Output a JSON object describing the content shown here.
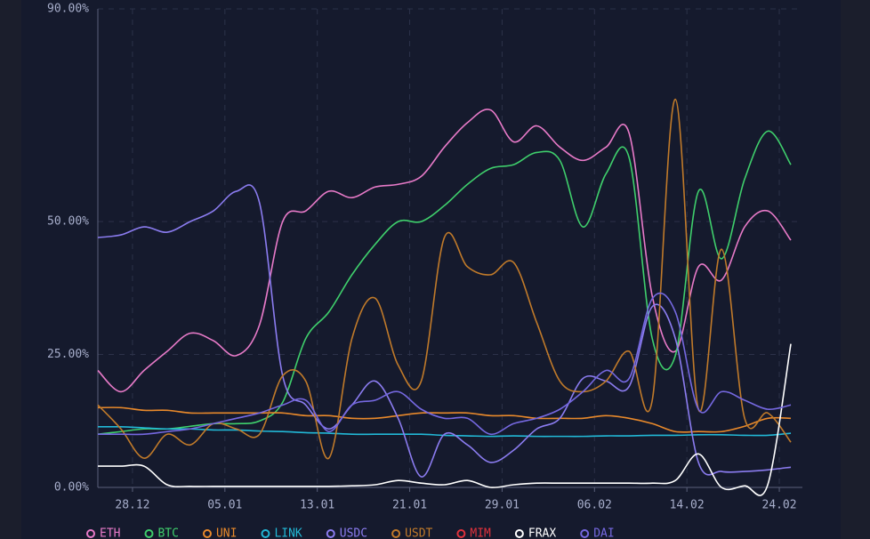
{
  "chart_data": {
    "type": "line",
    "x": [
      0,
      2,
      4,
      6,
      8,
      10,
      12,
      14,
      16,
      18,
      20,
      22,
      24,
      26,
      28,
      30,
      32,
      34,
      36,
      38,
      40,
      42,
      44,
      46,
      48,
      50,
      52,
      54,
      56,
      58,
      60
    ],
    "xlim": [
      0,
      61
    ],
    "xticks": [
      {
        "value": 3,
        "label": "28.12"
      },
      {
        "value": 11,
        "label": "05.01"
      },
      {
        "value": 19,
        "label": "13.01"
      },
      {
        "value": 27,
        "label": "21.01"
      },
      {
        "value": 35,
        "label": "29.01"
      },
      {
        "value": 43,
        "label": "06.02"
      },
      {
        "value": 51,
        "label": "14.02"
      },
      {
        "value": 59,
        "label": "24.02"
      }
    ],
    "ylim": [
      0,
      90
    ],
    "yticks": [
      {
        "value": 0,
        "label": "0.00%"
      },
      {
        "value": 25,
        "label": "25.00%"
      },
      {
        "value": 50,
        "label": "50.00%"
      },
      {
        "value": 90,
        "label": "90.00%"
      }
    ],
    "grid": true,
    "legend": "bottom",
    "series": [
      {
        "name": "ETH",
        "color": "#e77ac8",
        "values": [
          22,
          18,
          22,
          25.6,
          29,
          27.6,
          24.8,
          30.6,
          50,
          52,
          55.7,
          54.5,
          56.5,
          57,
          58.5,
          64,
          68.6,
          71,
          65,
          68,
          64,
          61.5,
          64,
          66.6,
          36,
          25.6,
          41.5,
          39,
          49,
          52,
          46.5
        ]
      },
      {
        "name": "BTC",
        "color": "#3fcf6c",
        "values": [
          10,
          10.5,
          11,
          11,
          11.5,
          12,
          12,
          12.5,
          16,
          28,
          33,
          40,
          45.7,
          50,
          50,
          53,
          57,
          60,
          60.7,
          63,
          61.5,
          49,
          59,
          62,
          28,
          24.8,
          55.7,
          43,
          58,
          67,
          60.7
        ]
      },
      {
        "name": "UNI",
        "color": "#e8892b",
        "values": [
          15,
          15,
          14.5,
          14.5,
          14,
          14,
          14,
          14,
          14,
          13.5,
          13.5,
          13,
          13,
          13.5,
          14,
          14,
          14,
          13.5,
          13.5,
          13,
          13,
          13,
          13.5,
          13,
          12,
          10.5,
          10.5,
          10.5,
          11.5,
          13,
          13
        ]
      },
      {
        "name": "LINK",
        "color": "#22b8d6",
        "values": [
          11.4,
          11.4,
          11.2,
          11,
          11,
          10.8,
          10.8,
          10.6,
          10.5,
          10.3,
          10.2,
          10,
          10,
          10,
          10,
          9.8,
          9.7,
          9.6,
          9.7,
          9.6,
          9.6,
          9.6,
          9.7,
          9.7,
          9.8,
          9.8,
          9.9,
          9.9,
          9.8,
          9.8,
          10.2
        ]
      },
      {
        "name": "USDC",
        "color": "#8b7cf0",
        "values": [
          47,
          47.5,
          49,
          48,
          50,
          52,
          55.7,
          53.5,
          21,
          15.5,
          11,
          15.5,
          20,
          13,
          2,
          10,
          8,
          4.7,
          7,
          11,
          13,
          20.5,
          20,
          19,
          34,
          28,
          4.7,
          3,
          3,
          3.3,
          3.8
        ]
      },
      {
        "name": "USDT",
        "color": "#c07a2a",
        "values": [
          15.5,
          11,
          5.5,
          10,
          8,
          12,
          11,
          10,
          21,
          20,
          5.5,
          28,
          35.6,
          23,
          20,
          47,
          41.5,
          40,
          42.3,
          31,
          20,
          18,
          20,
          25.6,
          16.4,
          73,
          14.7,
          44.8,
          13,
          14,
          8.5
        ]
      },
      {
        "name": "MIM",
        "color": "#e0323c",
        "values": [
          null,
          null,
          null,
          null,
          null,
          null,
          null,
          null,
          null,
          null,
          null,
          null,
          null,
          null,
          null,
          null,
          null,
          null,
          null,
          null,
          null,
          null,
          null,
          null,
          null,
          null,
          null,
          null,
          null,
          null,
          null
        ]
      },
      {
        "name": "FRAX",
        "color": "#ffffff",
        "values": [
          4,
          4,
          4,
          0.5,
          0.2,
          0.2,
          0.2,
          0.2,
          0.2,
          0.2,
          0.2,
          0.3,
          0.5,
          1.3,
          0.8,
          0.5,
          1.3,
          0,
          0.5,
          0.8,
          0.8,
          0.8,
          0.8,
          0.8,
          0.8,
          1.3,
          6.3,
          0,
          0.3,
          0.5,
          27
        ]
      },
      {
        "name": "DAI",
        "color": "#7568e0",
        "values": [
          10,
          10,
          10,
          10.5,
          11,
          12,
          13,
          14,
          15.5,
          16.4,
          10.5,
          15.5,
          16.4,
          18,
          14.7,
          13,
          13,
          10,
          12,
          13,
          14.7,
          18,
          22,
          20.5,
          35.5,
          33,
          14.7,
          18,
          16.4,
          14.7,
          15.5
        ]
      }
    ]
  }
}
